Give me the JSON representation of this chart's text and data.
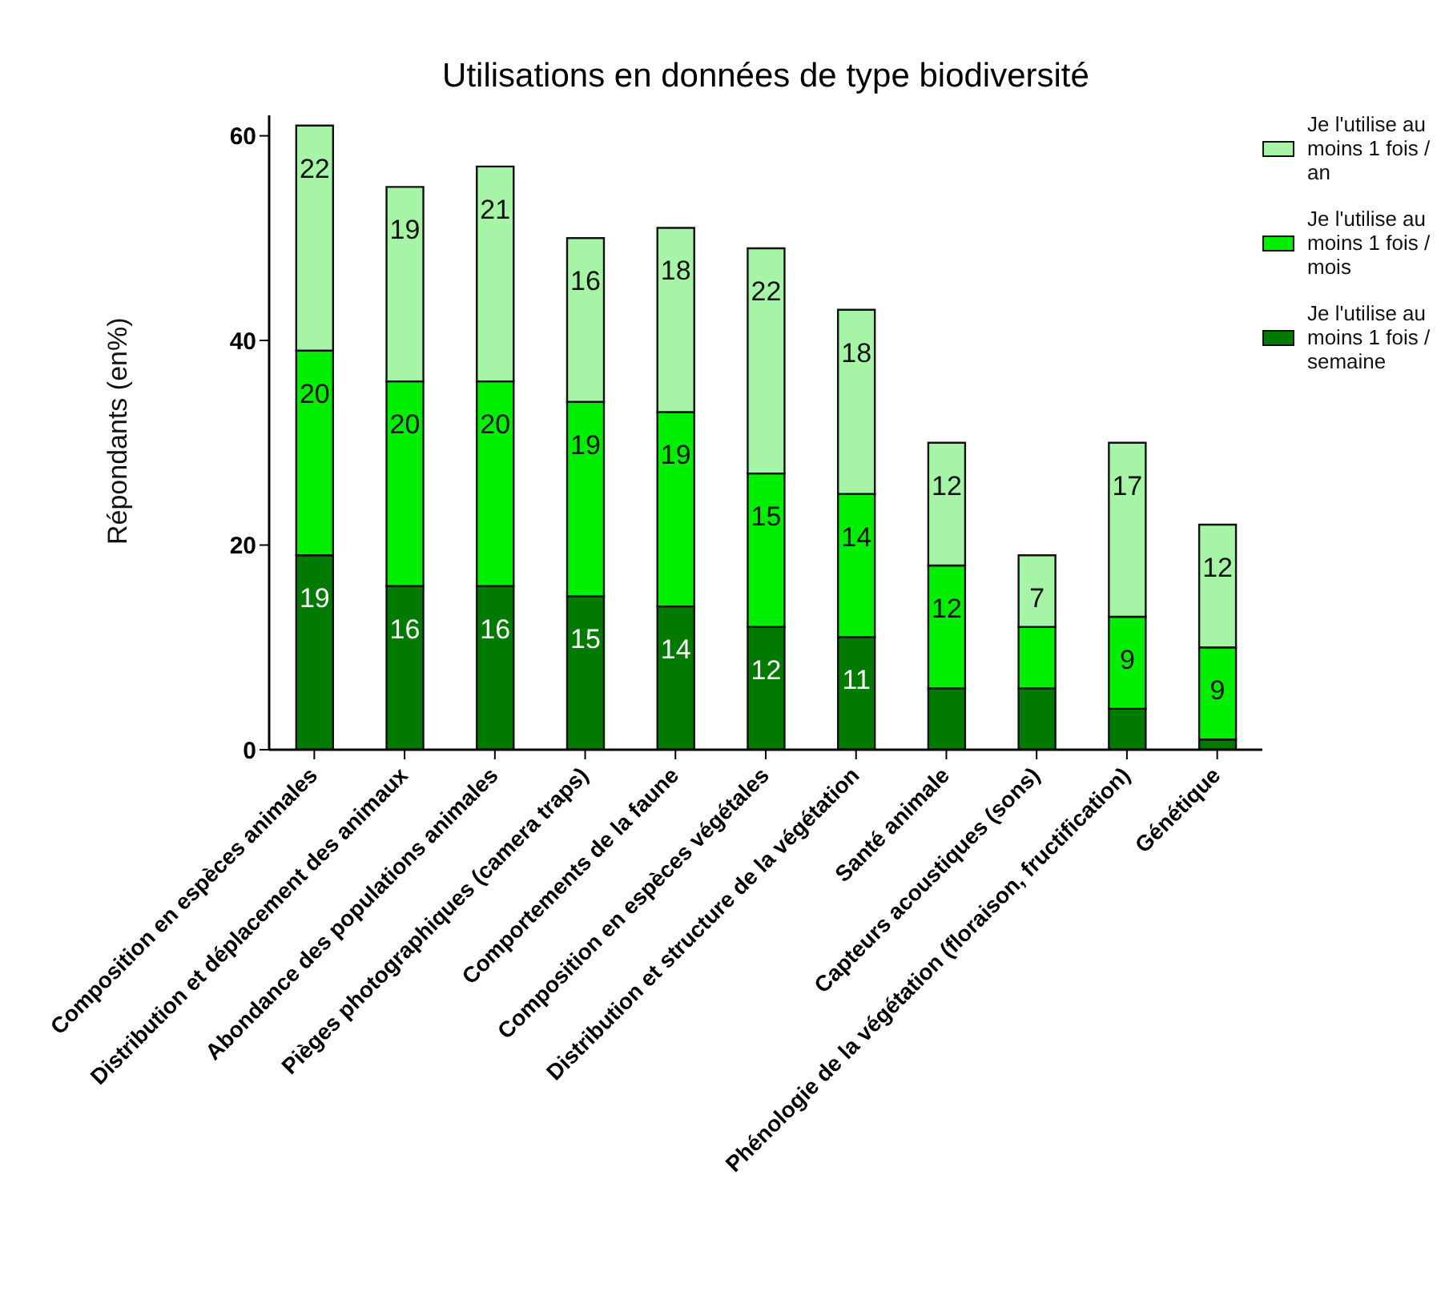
{
  "chart_data": {
    "type": "bar",
    "title": "Utilisations en données de type biodiversité",
    "ylabel": "Répondants (en%)",
    "categories": [
      "Composition en espèces animales",
      "Distribution et déplacement des animaux",
      "Abondance des populations animales",
      "Pièges photographiques (camera traps)",
      "Comportements de la faune",
      "Composition en espèces végétales",
      "Distribution et structure de la végétation",
      "Santé animale",
      "Capteurs acoustiques (sons)",
      "Phénologie de la végétation (floraison, fructification)",
      "Génétique"
    ],
    "stacked": true,
    "series": [
      {
        "name": "Je l'utilise au moins 1 fois / semaine",
        "color": "#007a00",
        "values": [
          19,
          16,
          16,
          15,
          14,
          12,
          11,
          6,
          6,
          4,
          1
        ],
        "value_labels": [
          "19",
          "16",
          "16",
          "15",
          "14",
          "12",
          "11",
          null,
          null,
          null,
          null
        ]
      },
      {
        "name": "Je l'utilise au moins 1 fois / mois",
        "color": "#00ee00",
        "values": [
          20,
          20,
          20,
          19,
          19,
          15,
          14,
          12,
          6,
          9,
          9
        ],
        "value_labels": [
          "20",
          "20",
          "20",
          "19",
          "19",
          "15",
          "14",
          "12",
          null,
          "9",
          "9"
        ]
      },
      {
        "name": "Je l'utilise au moins 1 fois / an",
        "color": "#a6f5a6",
        "values": [
          22,
          19,
          21,
          16,
          18,
          22,
          18,
          12,
          7,
          17,
          12
        ],
        "value_labels": [
          "22",
          "19",
          "21",
          "16",
          "18",
          "22",
          "18",
          "12",
          "7",
          "17",
          "12"
        ]
      }
    ],
    "ylim": [
      0,
      62
    ],
    "yticks": [
      0,
      20,
      40,
      60
    ],
    "grid": false,
    "legend": "right"
  }
}
